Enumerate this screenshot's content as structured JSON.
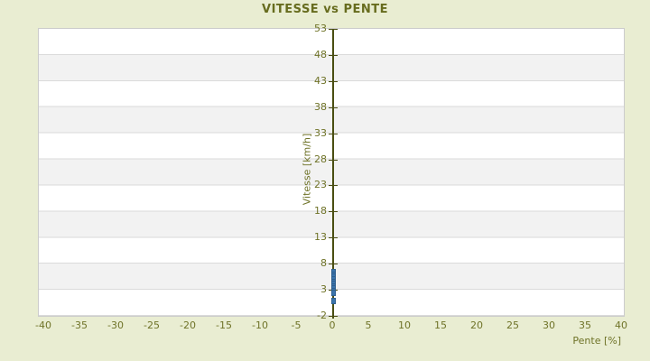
{
  "title": "VITESSE vs PENTE",
  "colors": {
    "background": "#E9EDD2",
    "text_olive": "#6F7328",
    "title_olive": "#676C1E",
    "axis_line": "#4A4E12",
    "band_white": "#FFFFFF",
    "band_gray": "#F2F2F2",
    "plot_border": "#CCCCCC",
    "marker_blue": "#3A74AC",
    "marker_border": "#2F5F8E"
  },
  "chart_data": {
    "type": "scatter",
    "title": "VITESSE vs PENTE",
    "xlabel": "Pente [%]",
    "ylabel": "Vitesse [km/h]",
    "xlim": [
      -41,
      40
    ],
    "ylim": [
      -2,
      53
    ],
    "xticks": [
      -40,
      -35,
      -30,
      -25,
      -20,
      -15,
      -10,
      -5,
      0,
      5,
      10,
      15,
      20,
      25,
      30,
      35,
      40
    ],
    "yticks": [
      53,
      48,
      43,
      38,
      33,
      28,
      23,
      18,
      13,
      8,
      3,
      -2
    ],
    "grid": "horizontal-bands-alternating",
    "legend": "none",
    "series": [
      {
        "name": "vitesse",
        "color": "#3A74AC",
        "points": [
          {
            "x": 0,
            "y": 6.35
          },
          {
            "x": 0,
            "y": 5.9
          },
          {
            "x": 0,
            "y": 5.45
          },
          {
            "x": 0,
            "y": 5.0
          },
          {
            "x": 0,
            "y": 4.55
          },
          {
            "x": 0,
            "y": 4.1
          },
          {
            "x": 0,
            "y": 3.65
          },
          {
            "x": 0,
            "y": 3.2
          },
          {
            "x": 0,
            "y": 2.75
          },
          {
            "x": 0,
            "y": 2.4
          },
          {
            "x": 0,
            "y": 0.8
          }
        ]
      }
    ]
  }
}
